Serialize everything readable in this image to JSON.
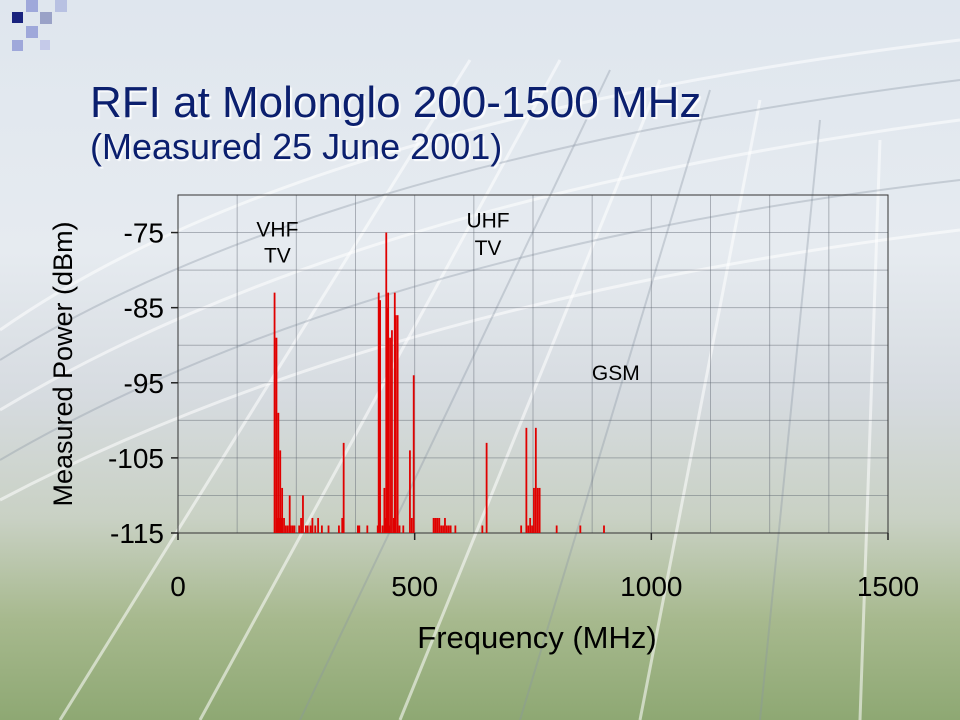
{
  "slide": {
    "title": "RFI at Molonglo 200-1500 MHz",
    "subtitle": "(Measured 25 June 2001)"
  },
  "colors": {
    "title": "#0b1f6e",
    "bars": "#e00000",
    "corner_dark": "#1a237e",
    "corner_light": "#9fa8da"
  },
  "chart_data": {
    "type": "bar",
    "title": "",
    "xlabel": "Frequency (MHz)",
    "ylabel": "Measured Power (dBm)",
    "xlim": [
      0,
      1500
    ],
    "ylim": [
      -115,
      -70
    ],
    "xticks": [
      0,
      500,
      1000,
      1500
    ],
    "yticks": [
      -75,
      -85,
      -95,
      -105,
      -115
    ],
    "grid": true,
    "baseline": -115,
    "annotations": [
      {
        "text": "VHF",
        "x": 210,
        "y": -75.5
      },
      {
        "text": "TV",
        "x": 210,
        "y": -79
      },
      {
        "text": "UHF",
        "x": 655,
        "y": -74.3
      },
      {
        "text": "TV",
        "x": 655,
        "y": -78
      },
      {
        "text": "GSM",
        "x": 925,
        "y": -94.6
      }
    ],
    "series": [
      {
        "values": [
          [
            204,
            -83
          ],
          [
            208,
            -89
          ],
          [
            210,
            -113
          ],
          [
            212,
            -99
          ],
          [
            214,
            -113
          ],
          [
            216,
            -104
          ],
          [
            218,
            -113
          ],
          [
            220,
            -109
          ],
          [
            224,
            -113
          ],
          [
            228,
            -114
          ],
          [
            232,
            -114
          ],
          [
            236,
            -110
          ],
          [
            238,
            -114
          ],
          [
            242,
            -114
          ],
          [
            246,
            -114
          ],
          [
            256,
            -114
          ],
          [
            260,
            -113
          ],
          [
            264,
            -110
          ],
          [
            270,
            -114
          ],
          [
            274,
            -114
          ],
          [
            280,
            -114
          ],
          [
            284,
            -113
          ],
          [
            290,
            -114
          ],
          [
            296,
            -113
          ],
          [
            304,
            -114
          ],
          [
            318,
            -114
          ],
          [
            340,
            -114
          ],
          [
            347,
            -113
          ],
          [
            350,
            -103
          ],
          [
            380,
            -114
          ],
          [
            383,
            -114
          ],
          [
            400,
            -114
          ],
          [
            422,
            -114
          ],
          [
            424,
            -83
          ],
          [
            427,
            -84
          ],
          [
            432,
            -114
          ],
          [
            436,
            -109
          ],
          [
            438,
            -113
          ],
          [
            440,
            -75
          ],
          [
            442,
            -85
          ],
          [
            444,
            -83
          ],
          [
            446,
            -114
          ],
          [
            448,
            -89
          ],
          [
            452,
            -88
          ],
          [
            456,
            -113
          ],
          [
            458,
            -83
          ],
          [
            460,
            -86
          ],
          [
            464,
            -86
          ],
          [
            468,
            -114
          ],
          [
            476,
            -114
          ],
          [
            490,
            -104
          ],
          [
            494,
            -113
          ],
          [
            498,
            -94
          ],
          [
            540,
            -113
          ],
          [
            544,
            -113
          ],
          [
            548,
            -113
          ],
          [
            552,
            -113
          ],
          [
            556,
            -114
          ],
          [
            560,
            -114
          ],
          [
            564,
            -113
          ],
          [
            568,
            -114
          ],
          [
            572,
            -114
          ],
          [
            576,
            -114
          ],
          [
            586,
            -114
          ],
          [
            643,
            -114
          ],
          [
            652,
            -103
          ],
          [
            725,
            -114
          ],
          [
            736,
            -101
          ],
          [
            740,
            -114
          ],
          [
            744,
            -113
          ],
          [
            748,
            -114
          ],
          [
            752,
            -109
          ],
          [
            756,
            -101
          ],
          [
            760,
            -109
          ],
          [
            764,
            -109
          ],
          [
            800,
            -114
          ],
          [
            850,
            -114
          ],
          [
            900,
            -114
          ]
        ]
      }
    ]
  }
}
